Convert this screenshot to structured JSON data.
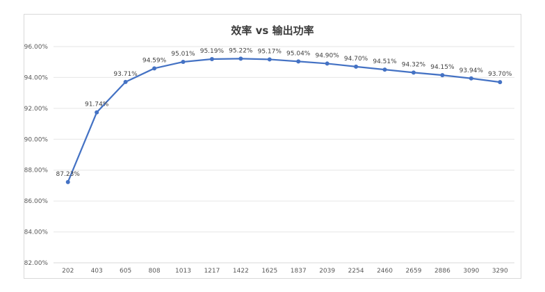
{
  "chart_data": {
    "type": "line",
    "title": "效率 vs 输出功率",
    "xlabel": "",
    "ylabel": "",
    "categories": [
      "202",
      "403",
      "605",
      "808",
      "1013",
      "1217",
      "1422",
      "1625",
      "1837",
      "2039",
      "2254",
      "2460",
      "2659",
      "2886",
      "3090",
      "3290"
    ],
    "series": [
      {
        "values": [
          87.23,
          91.74,
          93.71,
          94.59,
          95.01,
          95.19,
          95.22,
          95.17,
          95.04,
          94.9,
          94.7,
          94.51,
          94.32,
          94.15,
          93.94,
          93.7
        ],
        "labels": [
          "87.23%",
          "91.74%",
          "93.71%",
          "94.59%",
          "95.01%",
          "95.19%",
          "95.22%",
          "95.17%",
          "95.04%",
          "94.90%",
          "94.70%",
          "94.51%",
          "94.32%",
          "94.15%",
          "93.94%",
          "93.70%"
        ],
        "color": "#4472c4"
      }
    ],
    "ylim": [
      82,
      96
    ],
    "yticks": [
      82,
      84,
      86,
      88,
      90,
      92,
      94,
      96
    ],
    "ytick_labels": [
      "82.00%",
      "84.00%",
      "86.00%",
      "88.00%",
      "90.00%",
      "92.00%",
      "94.00%",
      "96.00%"
    ],
    "grid": true,
    "legend": "none"
  }
}
